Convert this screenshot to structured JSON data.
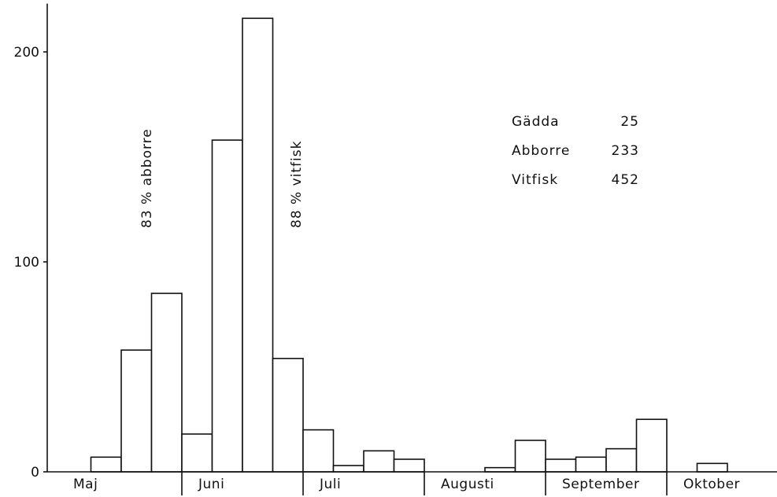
{
  "chart_data": {
    "type": "bar",
    "title": "",
    "xlabel": "",
    "ylabel": "",
    "ylim": [
      0,
      220
    ],
    "yticks": [
      0,
      100,
      200
    ],
    "grid": false,
    "x_period_labels": [
      "Maj",
      "Juni",
      "Juli",
      "Augusti",
      "September",
      "Oktober"
    ],
    "values": [
      0,
      7,
      58,
      85,
      18,
      158,
      216,
      54,
      20,
      3,
      10,
      6,
      0,
      0,
      2,
      15,
      6,
      7,
      11,
      25,
      0,
      4,
      0,
      0
    ],
    "annotations": [
      "83 % abborre",
      "88 % vitfisk"
    ],
    "legend": {
      "placement": "top-right",
      "entries": [
        {
          "name": "Gädda",
          "value": "25"
        },
        {
          "name": "Abborre",
          "value": "233"
        },
        {
          "name": "Vitfisk",
          "value": "452"
        }
      ]
    }
  }
}
